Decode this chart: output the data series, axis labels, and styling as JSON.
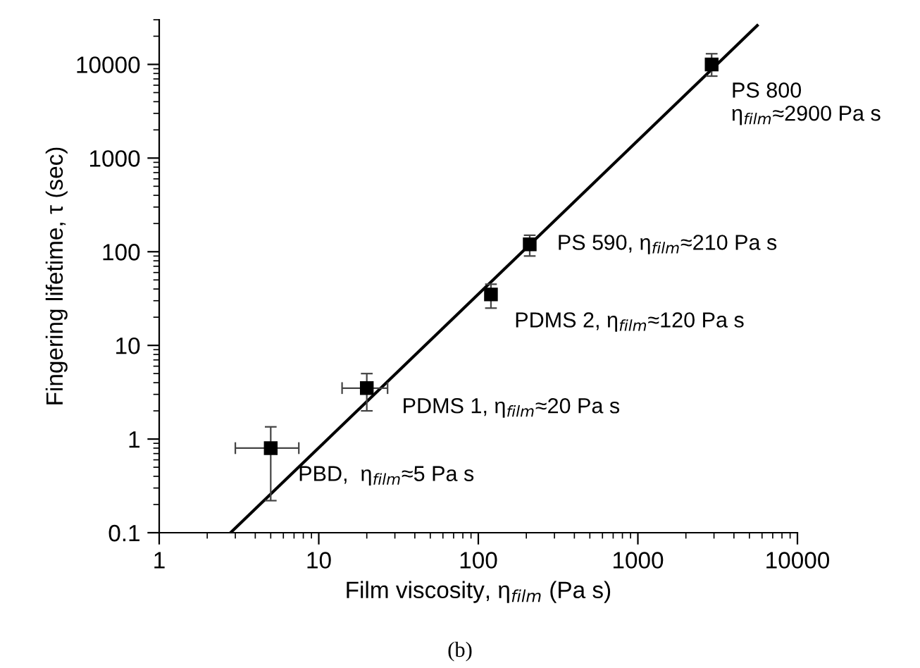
{
  "chart_data": {
    "type": "scatter",
    "xlabel": "Film viscosity, η$_{film}$ (Pa s)",
    "ylabel": "Fingering lifetime, τ (sec)",
    "log": "xy",
    "xlim": [
      1,
      10000
    ],
    "ylim": [
      0.1,
      30000
    ],
    "xticks": [
      1,
      10,
      100,
      1000,
      10000
    ],
    "yticks": [
      0.1,
      1,
      10,
      100,
      1000,
      10000
    ],
    "grid": false,
    "legend": false,
    "marker": "square",
    "series": [
      {
        "color": "#000000",
        "x": [
          5,
          20,
          120,
          210,
          2900
        ],
        "values": [
          0.8,
          3.5,
          35,
          120,
          10000
        ],
        "errors": [
          [
            0.22,
            1.35
          ],
          [
            2,
            5
          ],
          [
            25,
            45
          ],
          [
            90,
            150
          ],
          [
            7500,
            13000
          ]
        ],
        "xerrors": [
          [
            3,
            7.5
          ],
          [
            14,
            27
          ],
          null,
          null,
          null
        ]
      },
      {
        "type": "line",
        "color": "#000000",
        "line_style": "solid",
        "marker": "none",
        "x": [
          2.8,
          5600
        ],
        "values": [
          0.1,
          26000
        ]
      }
    ],
    "annotations": [
      {
        "text": "PBD,  η$_{film}$≈5 Pa s",
        "x": 5,
        "y": 0.8
      },
      {
        "text": "PDMS 1, η$_{film}$≈20 Pa s",
        "x": 20,
        "y": 3.5
      },
      {
        "text": "PDMS 2, η$_{film}$≈120 Pa s",
        "x": 120,
        "y": 35
      },
      {
        "text": "PS 590, η$_{film}$≈210 Pa s",
        "x": 210,
        "y": 120
      },
      {
        "text": "PS 800\nη$_{film}$≈2900 Pa s",
        "x": 2900,
        "y": 10000
      },
      "(b)"
    ]
  }
}
